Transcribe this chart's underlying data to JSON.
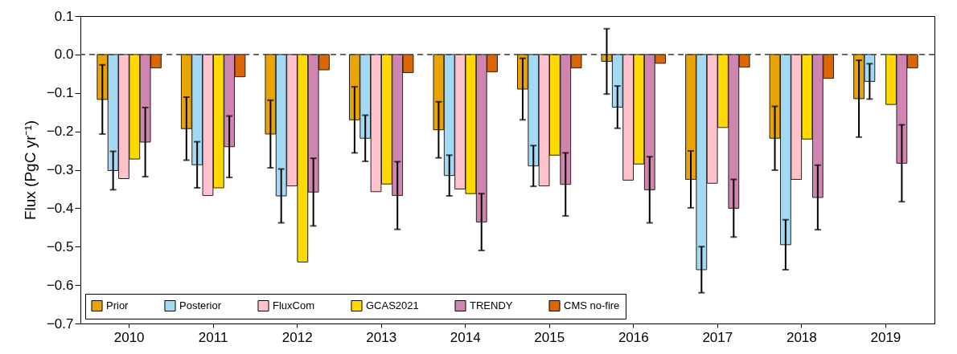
{
  "chart_data": {
    "type": "bar",
    "ylabel": "Flux (PgC yr⁻¹)",
    "categories": [
      "2010",
      "2011",
      "2012",
      "2013",
      "2014",
      "2015",
      "2016",
      "2017",
      "2018",
      "2019"
    ],
    "ylim": [
      -0.7,
      0.1
    ],
    "yticks": [
      {
        "value": 0.1,
        "label": "0.1"
      },
      {
        "value": 0,
        "label": "0.0"
      },
      {
        "value": -0.1,
        "label": "−0.1"
      },
      {
        "value": -0.2,
        "label": "−0.2"
      },
      {
        "value": -0.3,
        "label": "−0.3"
      },
      {
        "value": -0.4,
        "label": "−0.4"
      },
      {
        "value": -0.5,
        "label": "−0.5"
      },
      {
        "value": -0.6,
        "label": "−0.6"
      },
      {
        "value": -0.7,
        "label": "−0.7"
      }
    ],
    "series": [
      {
        "name": "Prior",
        "color": "#e9a302",
        "values": [
          -0.117,
          -0.193,
          -0.207,
          -0.17,
          -0.196,
          -0.09,
          -0.018,
          -0.325,
          -0.218,
          -0.115
        ],
        "errors": [
          0.09,
          0.082,
          0.088,
          0.086,
          0.073,
          0.08,
          0.085,
          0.074,
          0.083,
          0.1
        ]
      },
      {
        "name": "Posterior",
        "color": "#a3d9f2",
        "values": [
          -0.302,
          -0.287,
          -0.368,
          -0.218,
          -0.315,
          -0.29,
          -0.137,
          -0.56,
          -0.495,
          -0.07
        ],
        "errors": [
          0.05,
          0.06,
          0.07,
          0.06,
          0.053,
          0.053,
          0.055,
          0.06,
          0.065,
          0.046
        ]
      },
      {
        "name": "FluxCom",
        "color": "#ffc1cc",
        "values": [
          -0.323,
          -0.367,
          -0.342,
          -0.357,
          -0.35,
          -0.342,
          -0.327,
          -0.335,
          -0.325,
          null
        ]
      },
      {
        "name": "GCAS2021",
        "color": "#ffd900",
        "values": [
          -0.272,
          -0.347,
          -0.54,
          -0.337,
          -0.362,
          -0.262,
          -0.285,
          -0.19,
          -0.22,
          -0.13
        ]
      },
      {
        "name": "TRENDY",
        "color": "#d084b0",
        "values": [
          -0.228,
          -0.24,
          -0.358,
          -0.367,
          -0.436,
          -0.338,
          -0.352,
          -0.4,
          -0.372,
          -0.283
        ],
        "errors": [
          0.09,
          0.08,
          0.088,
          0.088,
          0.074,
          0.082,
          0.086,
          0.075,
          0.084,
          0.1
        ]
      },
      {
        "name": "CMS no-fire",
        "color": "#de6600",
        "values": [
          -0.035,
          -0.058,
          -0.04,
          -0.047,
          -0.045,
          -0.035,
          -0.023,
          -0.033,
          -0.062,
          -0.035
        ]
      }
    ],
    "ref_lines": [
      {
        "axis": "y",
        "value": 0,
        "line_style": "dashed",
        "color": "#555555"
      }
    ],
    "grid": false,
    "legend": "bottom left"
  }
}
